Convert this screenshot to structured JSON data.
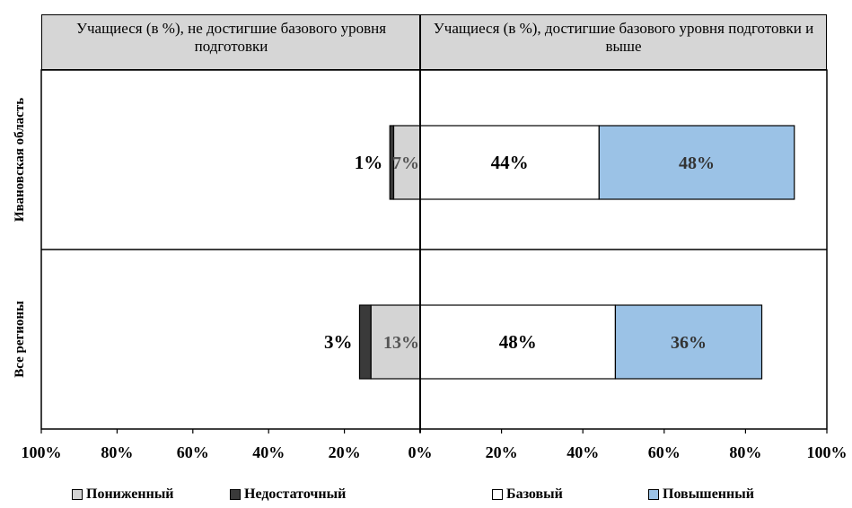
{
  "headers": {
    "left": "Учащиеся (в %), не достигшие базового уровня подготовки",
    "right": "Учащиеся (в %), достигшие базового уровня подготовки и выше"
  },
  "chart_data": {
    "type": "bar",
    "orientation": "horizontal-diverging",
    "categories": [
      "Ивановская область",
      "Все регионы"
    ],
    "series": [
      {
        "name": "Пониженный",
        "side": "negative",
        "color": "#d4d4d4",
        "values": [
          7,
          13
        ]
      },
      {
        "name": "Недостаточный",
        "side": "negative",
        "color": "#3a3a3a",
        "values": [
          1,
          3
        ]
      },
      {
        "name": "Базовый",
        "side": "positive",
        "color": "#ffffff",
        "values": [
          44,
          48
        ]
      },
      {
        "name": "Повышенный",
        "side": "positive",
        "color": "#9bc2e6",
        "values": [
          48,
          36
        ]
      }
    ],
    "data_labels": [
      [
        "7%",
        "1%",
        "44%",
        "48%"
      ],
      [
        "13%",
        "3%",
        "48%",
        "36%"
      ]
    ],
    "xlim": [
      -100,
      100
    ],
    "xticks": [
      -100,
      -80,
      -60,
      -40,
      -20,
      0,
      20,
      40,
      60,
      80,
      100
    ],
    "xtick_labels": [
      "100%",
      "80%",
      "60%",
      "40%",
      "20%",
      "0%",
      "20%",
      "40%",
      "60%",
      "80%",
      "100%"
    ],
    "grid": false,
    "legend_position": "bottom"
  },
  "legend": [
    {
      "label": "Пониженный",
      "color": "#d4d4d4"
    },
    {
      "label": "Недостаточный",
      "color": "#3a3a3a"
    },
    {
      "label": "Базовый",
      "color": "#ffffff"
    },
    {
      "label": "Повышенный",
      "color": "#9bc2e6"
    }
  ]
}
